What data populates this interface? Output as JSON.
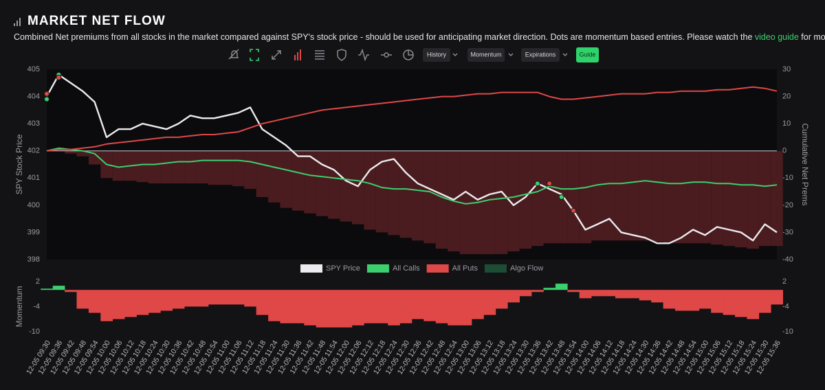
{
  "header": {
    "title": "MARKET NET FLOW",
    "description_before": "Combined Net premiums from all stocks in the market compared against SPY's stock price - should be used for anticipating market direction. Dots are momentum based entries. Please watch the ",
    "description_link": "video guide",
    "description_after": " for more details."
  },
  "toolbar": [
    "History",
    "Momentum",
    "Expirations",
    "Guide"
  ],
  "chart_data": [
    {
      "type": "line",
      "categories": [
        "12-05 09:30",
        "12-05 09:36",
        "12-05 09:42",
        "12-05 09:48",
        "12-05 09:54",
        "12-05 10:00",
        "12-05 10:06",
        "12-05 10:12",
        "12-05 10:18",
        "12-05 10:24",
        "12-05 10:30",
        "12-05 10:36",
        "12-05 10:42",
        "12-05 10:48",
        "12-05 10:54",
        "12-05 11:00",
        "12-05 11:06",
        "12-05 11:12",
        "12-05 11:18",
        "12-05 11:24",
        "12-05 11:30",
        "12-05 11:36",
        "12-05 11:42",
        "12-05 11:48",
        "12-05 11:54",
        "12-05 12:00",
        "12-05 12:06",
        "12-05 12:12",
        "12-05 12:18",
        "12-05 12:24",
        "12-05 12:30",
        "12-05 12:36",
        "12-05 12:42",
        "12-05 12:48",
        "12-05 12:54",
        "12-05 13:00",
        "12-05 13:06",
        "12-05 13:12",
        "12-05 13:18",
        "12-05 13:24",
        "12-05 13:30",
        "12-05 13:36",
        "12-05 13:42",
        "12-05 13:48",
        "12-05 13:54",
        "12-05 14:00",
        "12-05 14:06",
        "12-05 14:12",
        "12-05 14:18",
        "12-05 14:24",
        "12-05 14:30",
        "12-05 14:36",
        "12-05 14:42",
        "12-05 14:48",
        "12-05 14:54",
        "12-05 15:00",
        "12-05 15:06",
        "12-05 15:12",
        "12-05 15:18",
        "12-05 15:24",
        "12-05 15:30",
        "12-05 15:36"
      ],
      "ylabel": "SPY Stock Price",
      "y2label": "Cumulative Net Prems",
      "ylim": [
        398,
        405
      ],
      "yticks": [
        398,
        399,
        400,
        401,
        402,
        403,
        404,
        405
      ],
      "y2lim": [
        -40,
        30
      ],
      "y2ticks": [
        -40,
        -30,
        -20,
        -10,
        0,
        10,
        20,
        30
      ],
      "series": [
        {
          "name": "SPY Price",
          "type": "line",
          "color": "#ececf0",
          "values": [
            404.0,
            404.8,
            404.5,
            404.2,
            403.8,
            402.5,
            402.8,
            402.8,
            403.0,
            402.9,
            402.8,
            403.0,
            403.3,
            403.2,
            403.2,
            403.3,
            403.4,
            403.6,
            402.8,
            402.5,
            402.2,
            401.8,
            401.8,
            401.5,
            401.3,
            400.9,
            400.7,
            401.3,
            401.6,
            401.7,
            401.2,
            400.8,
            400.6,
            400.4,
            400.2,
            400.5,
            400.2,
            400.4,
            400.5,
            400.0,
            400.3,
            400.8,
            400.6,
            400.4,
            399.8,
            399.1,
            399.3,
            399.5,
            399.0,
            398.9,
            398.8,
            398.6,
            398.6,
            398.8,
            399.1,
            398.9,
            399.2,
            399.1,
            399.0,
            398.7,
            399.3,
            399.0
          ]
        },
        {
          "name": "All Calls",
          "type": "line",
          "axis": "y2",
          "color": "#3ccf6e",
          "values": [
            0,
            1,
            0.5,
            0,
            -1,
            -5,
            -6,
            -5.5,
            -5,
            -5,
            -4.5,
            -4,
            -4,
            -3.5,
            -3.5,
            -3.5,
            -3.5,
            -4,
            -5,
            -6,
            -7,
            -8,
            -9,
            -9.5,
            -10,
            -10.5,
            -11,
            -12,
            -13.5,
            -14,
            -14,
            -14.5,
            -15,
            -17,
            -18.5,
            -19.5,
            -19,
            -18,
            -17.5,
            -17,
            -16,
            -15,
            -13,
            -14,
            -14,
            -13.5,
            -12.5,
            -12,
            -12,
            -11.5,
            -11,
            -11.5,
            -12,
            -12,
            -11.5,
            -11.5,
            -12,
            -12,
            -12.5,
            -12.5,
            -13,
            -12.5
          ]
        },
        {
          "name": "All Puts",
          "type": "line",
          "axis": "y2",
          "color": "#e04848",
          "values": [
            0,
            0.5,
            0.5,
            1,
            1.5,
            2.5,
            3,
            3.5,
            4,
            4.5,
            5,
            5,
            5.5,
            6,
            6,
            6.5,
            7,
            8.5,
            10,
            11,
            12,
            13,
            14,
            15,
            15.5,
            16,
            16.5,
            17,
            17.5,
            18,
            18.5,
            19,
            19.5,
            20,
            20,
            20.5,
            21,
            21,
            21.5,
            21.5,
            21.5,
            21.5,
            20,
            19,
            19,
            19.5,
            20,
            20.5,
            21,
            21,
            21,
            21.5,
            21.5,
            22,
            22,
            22,
            22.5,
            22.5,
            23,
            23.5,
            23,
            22
          ]
        },
        {
          "name": "Algo Flow",
          "type": "bar",
          "axis": "y2",
          "color": "#4a1c1f",
          "legend_color": "#1e4d35",
          "values": [
            0,
            0,
            -1,
            -2,
            -5,
            -10,
            -11,
            -11,
            -11.5,
            -12,
            -12,
            -12,
            -12,
            -12,
            -12.5,
            -12.5,
            -13,
            -14,
            -17,
            -19,
            -21,
            -22,
            -23,
            -24,
            -25,
            -26,
            -27,
            -29,
            -30,
            -31,
            -32,
            -33,
            -34,
            -36,
            -37,
            -38,
            -38,
            -38,
            -38,
            -37,
            -36,
            -35,
            -34,
            -34,
            -34,
            -34,
            -33,
            -33,
            -33,
            -33,
            -33,
            -33.5,
            -34,
            -34,
            -34,
            -34,
            -34.5,
            -35,
            -35.5,
            -36,
            -35,
            -35
          ]
        }
      ],
      "entries": [
        {
          "x": "12-05 09:30",
          "value": 403.9,
          "color": "#3ccf6e"
        },
        {
          "x": "12-05 09:30",
          "value": 404.1,
          "color": "#e04848"
        },
        {
          "x": "12-05 09:36",
          "value": 404.8,
          "color": "#3ccf6e"
        },
        {
          "x": "12-05 09:36",
          "value": 404.7,
          "color": "#e04848"
        },
        {
          "x": "12-05 13:36",
          "value": 400.8,
          "color": "#3ccf6e"
        },
        {
          "x": "12-05 13:42",
          "value": 400.8,
          "color": "#e04848"
        },
        {
          "x": "12-05 13:48",
          "value": 400.3,
          "color": "#3ccf6e"
        },
        {
          "x": "12-05 13:54",
          "value": 399.8,
          "color": "#e04848"
        }
      ]
    },
    {
      "type": "bar",
      "ylabel": "Momentum",
      "categories": [
        "12-05 09:30",
        "12-05 09:36",
        "12-05 09:42",
        "12-05 09:48",
        "12-05 09:54",
        "12-05 10:00",
        "12-05 10:06",
        "12-05 10:12",
        "12-05 10:18",
        "12-05 10:24",
        "12-05 10:30",
        "12-05 10:36",
        "12-05 10:42",
        "12-05 10:48",
        "12-05 10:54",
        "12-05 11:00",
        "12-05 11:06",
        "12-05 11:12",
        "12-05 11:18",
        "12-05 11:24",
        "12-05 11:30",
        "12-05 11:36",
        "12-05 11:42",
        "12-05 11:48",
        "12-05 11:54",
        "12-05 12:00",
        "12-05 12:06",
        "12-05 12:12",
        "12-05 12:18",
        "12-05 12:24",
        "12-05 12:30",
        "12-05 12:36",
        "12-05 12:42",
        "12-05 12:48",
        "12-05 12:54",
        "12-05 13:00",
        "12-05 13:06",
        "12-05 13:12",
        "12-05 13:18",
        "12-05 13:24",
        "12-05 13:30",
        "12-05 13:36",
        "12-05 13:42",
        "12-05 13:48",
        "12-05 13:54",
        "12-05 14:00",
        "12-05 14:06",
        "12-05 14:12",
        "12-05 14:18",
        "12-05 14:24",
        "12-05 14:30",
        "12-05 14:36",
        "12-05 14:42",
        "12-05 14:48",
        "12-05 14:54",
        "12-05 15:00",
        "12-05 15:06",
        "12-05 15:12",
        "12-05 15:18",
        "12-05 15:24",
        "12-05 15:30",
        "12-05 15:36"
      ],
      "values": [
        0.3,
        1,
        -0.5,
        -4.5,
        -5.5,
        -7.5,
        -7,
        -6.5,
        -6,
        -5.5,
        -5,
        -4.5,
        -4,
        -4,
        -3.5,
        -3.5,
        -3.5,
        -4,
        -6,
        -7.5,
        -8,
        -8,
        -8.5,
        -9,
        -9,
        -9,
        -8.5,
        -8,
        -8,
        -8.5,
        -8,
        -7,
        -7.5,
        -8,
        -8.5,
        -8.5,
        -7,
        -6,
        -4.5,
        -3,
        -1.5,
        -0.5,
        0.5,
        1.5,
        -0.5,
        -2,
        -1.5,
        -1.5,
        -2,
        -2,
        -2.5,
        -3,
        -4.5,
        -5,
        -5,
        -4.5,
        -5.5,
        -6,
        -6.5,
        -7,
        -5.5,
        -3.5
      ],
      "positive_color": "#3ccf6e",
      "negative_color": "#e04848",
      "ylim": [
        -11,
        3
      ],
      "yticks": [
        2,
        -4,
        -10
      ]
    }
  ]
}
